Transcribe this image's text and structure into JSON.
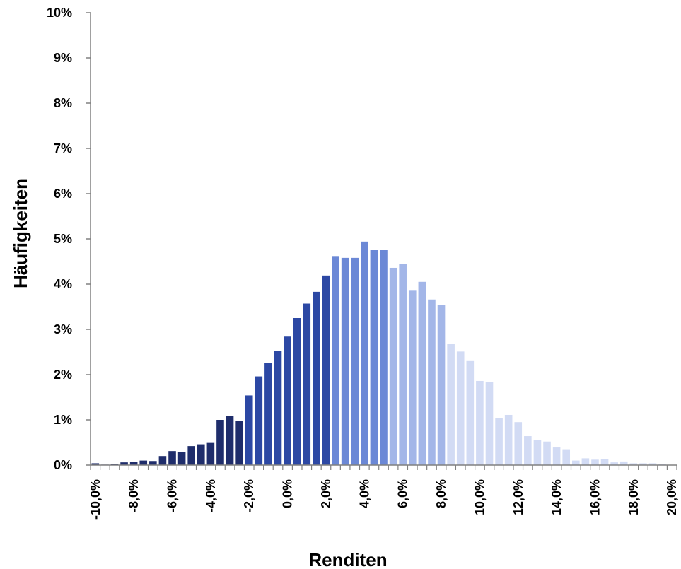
{
  "chart_data": {
    "type": "bar",
    "title": "",
    "xlabel": "Renditen",
    "ylabel": "Häufigkeiten",
    "xlim": [
      -10.25,
      20.25
    ],
    "ylim": [
      0,
      10
    ],
    "grid": false,
    "y_ticks": [
      "0%",
      "1%",
      "2%",
      "3%",
      "4%",
      "5%",
      "6%",
      "7%",
      "8%",
      "9%",
      "10%"
    ],
    "x_tick_values": [
      -10,
      -8,
      -6,
      -4,
      -2,
      0,
      2,
      4,
      6,
      8,
      10,
      12,
      14,
      16,
      18,
      20
    ],
    "x_tick_labels": [
      "-10,0%",
      "-8,0%",
      "-6,0%",
      "-4,0%",
      "-2,0%",
      "0,0%",
      "2,0%",
      "4,0%",
      "6,0%",
      "8,0%",
      "10,0%",
      "12,0%",
      "14,0%",
      "16,0%",
      "18,0%",
      "20,0%"
    ],
    "colors": {
      "band1": "#1f2d6b",
      "band2": "#2c48a4",
      "band3": "#6b88d6",
      "band4": "#a3b6e8",
      "band5": "#d2dbf4",
      "axis": "#808080"
    },
    "bands": [
      {
        "from": -10.25,
        "to": -2.25,
        "color": "#1f2d6b"
      },
      {
        "from": -2.25,
        "to": 2.25,
        "color": "#2c48a4"
      },
      {
        "from": 2.25,
        "to": 5.25,
        "color": "#6b88d6"
      },
      {
        "from": 5.25,
        "to": 8.25,
        "color": "#a3b6e8"
      },
      {
        "from": 8.25,
        "to": 20.25,
        "color": "#d2dbf4"
      }
    ],
    "x": [
      -10.0,
      -9.5,
      -9.0,
      -8.5,
      -8.0,
      -7.5,
      -7.0,
      -6.5,
      -6.0,
      -5.5,
      -5.0,
      -4.5,
      -4.0,
      -3.5,
      -3.0,
      -2.5,
      -2.0,
      -1.5,
      -1.0,
      -0.5,
      0.0,
      0.5,
      1.0,
      1.5,
      2.0,
      2.5,
      3.0,
      3.5,
      4.0,
      4.5,
      5.0,
      5.5,
      6.0,
      6.5,
      7.0,
      7.5,
      8.0,
      8.5,
      9.0,
      9.5,
      10.0,
      10.5,
      11.0,
      11.5,
      12.0,
      12.5,
      13.0,
      13.5,
      14.0,
      14.5,
      15.0,
      15.5,
      16.0,
      16.5,
      17.0,
      17.5,
      18.0,
      18.5,
      19.0,
      19.5
    ],
    "values": [
      0.04,
      0.01,
      0.02,
      0.06,
      0.07,
      0.1,
      0.09,
      0.2,
      0.31,
      0.29,
      0.42,
      0.46,
      0.49,
      1.0,
      1.08,
      0.98,
      1.54,
      1.96,
      2.26,
      2.53,
      2.84,
      3.25,
      3.57,
      3.83,
      4.19,
      4.62,
      4.58,
      4.58,
      4.94,
      4.76,
      4.75,
      4.36,
      4.45,
      3.87,
      4.05,
      3.66,
      3.54,
      2.68,
      2.51,
      2.3,
      1.86,
      1.84,
      1.04,
      1.11,
      0.95,
      0.64,
      0.55,
      0.52,
      0.39,
      0.35,
      0.1,
      0.15,
      0.12,
      0.14,
      0.06,
      0.08,
      0.04,
      0.04,
      0.04,
      0.03
    ]
  }
}
